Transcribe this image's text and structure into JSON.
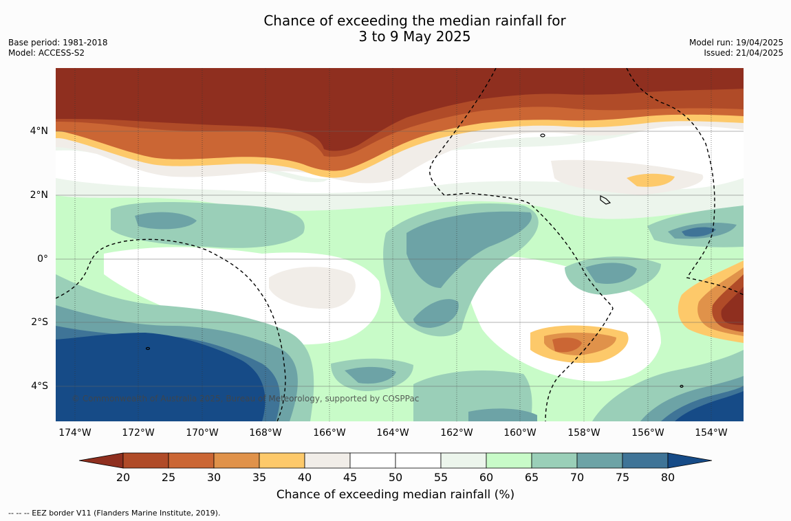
{
  "title": {
    "line1": "Chance of exceeding the median rainfall for",
    "line2": "3 to 9 May 2025"
  },
  "meta_left": {
    "base_period": "Base period: 1981-2018",
    "model": "Model: ACCESS-S2"
  },
  "meta_right": {
    "model_run": "Model run: 19/04/2025",
    "issued": "Issued: 21/04/2025"
  },
  "map": {
    "lat_labels": [
      "4°N",
      "2°N",
      "0°",
      "2°S",
      "4°S"
    ],
    "lon_labels": [
      "174°W",
      "172°W",
      "170°W",
      "168°W",
      "166°W",
      "164°W",
      "162°W",
      "160°W",
      "158°W",
      "156°W",
      "154°W"
    ],
    "credit": "© Commonwealth of Australia 2025, Bureau of Meteorology, supported by COSPPac",
    "colors": {
      "c20": "#8f2f1f",
      "c25": "#b04b28",
      "c30": "#cb6634",
      "c35": "#e0924a",
      "c40": "#fdc96a",
      "c45": "#f1ede8",
      "c50": "#ffffff",
      "c55": "#ffffff",
      "c60": "#ecf5ec",
      "c65": "#c8fbc8",
      "c70": "#9acfb8",
      "c75": "#6da3a6",
      "c80": "#3f7497",
      "c80plus": "#164b87"
    }
  },
  "colorbar": {
    "ticks": [
      "20",
      "25",
      "30",
      "35",
      "40",
      "45",
      "50",
      "55",
      "60",
      "65",
      "70",
      "75",
      "80"
    ],
    "label": "Chance of exceeding median rainfall (%)"
  },
  "footnote": "-- -- -- EEZ border V11 (Flanders Marine Institute, 2019)."
}
